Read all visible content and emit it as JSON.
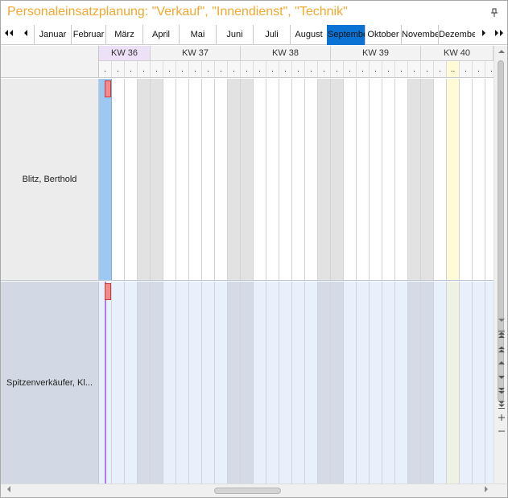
{
  "window": {
    "title": "Personaleinsatzplanung: \"Verkauf\", \"Innendienst\", \"Technik\"",
    "pin_icon": "pin-icon"
  },
  "month_nav": {
    "first_icon": "double-chevron-left-icon",
    "prev_icon": "chevron-left-icon",
    "next_icon": "chevron-right-icon",
    "last_icon": "double-chevron-right-icon",
    "months": [
      "Januar",
      "Februar",
      "März",
      "April",
      "Mai",
      "Juni",
      "Juli",
      "August",
      "September",
      "Oktober",
      "November",
      "Dezember"
    ],
    "active_month": "September",
    "active_color": "#0a73d4"
  },
  "timeline": {
    "weeks": [
      "KW 36",
      "KW 37",
      "KW 38",
      "KW 39",
      "KW 40"
    ],
    "current_week": "KW 36",
    "day_marker": ".",
    "today_marker": "..",
    "today_color": "#fffbd6",
    "weekend_color": "#e2e2e2"
  },
  "resources": [
    {
      "name": "Blitz, Berthold",
      "bar_color": "#f08b8b"
    },
    {
      "name": "Spitzenverkäufer, Kl...",
      "bar_color": "#f08b8b"
    }
  ],
  "scroll": {
    "up_icon": "arrow-up-icon",
    "down_icon": "arrow-down-icon",
    "left_icon": "arrow-left-icon",
    "right_icon": "arrow-right-icon",
    "zoom_in": "+",
    "zoom_out": "−",
    "nav_icons": [
      "arrow-down-icon",
      "jump-top-icon",
      "page-up-icon",
      "arrow-up-small-icon",
      "arrow-down-small-icon",
      "page-down-icon",
      "jump-bottom-icon",
      "zoom-in-icon",
      "zoom-out-icon"
    ]
  }
}
